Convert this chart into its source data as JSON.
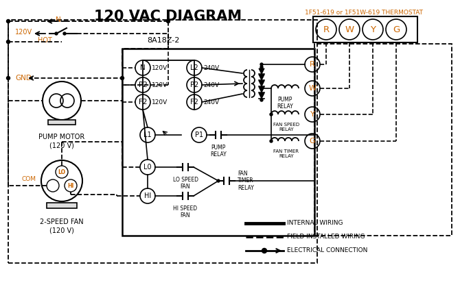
{
  "title": "120 VAC DIAGRAM",
  "title_fontsize": 15,
  "bg_color": "#ffffff",
  "line_color": "#000000",
  "orange_color": "#cc6600",
  "thermostat_label": "1F51-619 or 1F51W-619 THERMOSTAT",
  "control_box_label": "8A18Z-2",
  "terminals_rwgy": [
    "R",
    "W",
    "Y",
    "G"
  ],
  "legend_items": [
    "INTERNAL WIRING",
    "FIELD INSTALLED WIRING",
    "ELECTRICAL CONNECTION"
  ],
  "pump_motor_label": "PUMP MOTOR\n(120 V)",
  "fan_label": "2-SPEED FAN\n(120 V)"
}
